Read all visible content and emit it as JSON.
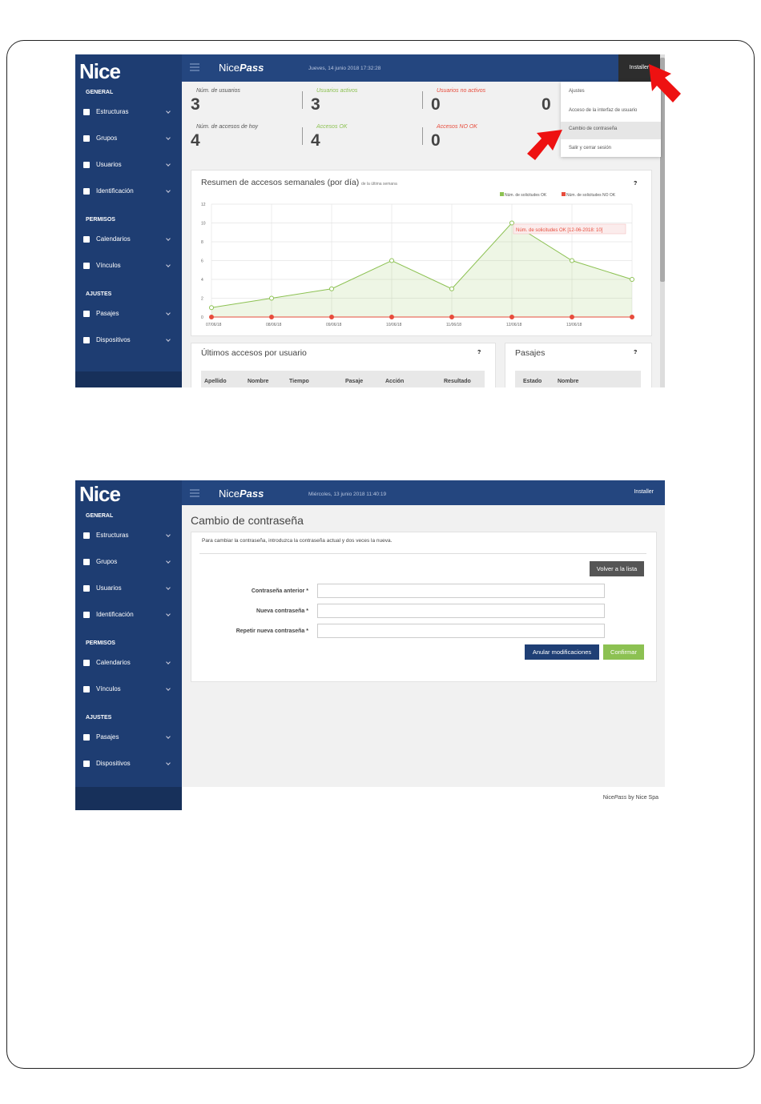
{
  "screen1": {
    "logo": "Nice",
    "app": "Nice",
    "app_em": "Pass",
    "datetime": "Jueves, 14 junio 2018   17:32:28",
    "user": "Installer",
    "sidebar": [
      {
        "title": "GENERAL",
        "items": [
          "Estructuras",
          "Grupos",
          "Usuarios",
          "Identificación"
        ]
      },
      {
        "title": "PERMISOS",
        "items": [
          "Calendarios",
          "Vínculos"
        ]
      },
      {
        "title": "AJUSTES",
        "items": [
          "Pasajes",
          "Dispositivos"
        ]
      }
    ],
    "stats": [
      [
        {
          "label": "Núm. de usuarios",
          "value": 3
        },
        {
          "label": "Usuarios activos",
          "value": 3
        },
        {
          "label": "Usuarios no activos",
          "value": 0
        },
        {
          "value": 0
        }
      ],
      [
        {
          "label": "Núm. de accesos de hoy",
          "value": 4
        },
        {
          "label": "Accesos OK",
          "value": 4
        },
        {
          "label": "Accesos NO OK",
          "value": 0
        }
      ]
    ],
    "menu": [
      "Ajustes",
      "Acceso de la interfaz de usuario",
      "Cambio de contraseña",
      "Salir y cerrar sesión"
    ],
    "chart": {
      "type": "line",
      "title": "Resumen de accesos semanales (por día)",
      "subtitle": "de la última semana",
      "help": "?",
      "categories": [
        "07/06/18",
        "08/06/18",
        "09/06/18",
        "10/06/18",
        "11/06/18",
        "12/06/18",
        "13/06/18",
        null
      ],
      "series": [
        {
          "name": "Núm. de solicitudes OK",
          "color": "#8cc152",
          "values": [
            1,
            2,
            3,
            6,
            3,
            10,
            6,
            4
          ]
        },
        {
          "name": "Núm. de solicitudes NO OK",
          "color": "#e74c3c",
          "values": [
            0,
            0,
            0,
            0,
            0,
            0,
            0,
            0
          ]
        }
      ],
      "ylim": [
        0,
        12
      ],
      "yticks": [
        0,
        2,
        4,
        6,
        8,
        10,
        12
      ],
      "grid": true,
      "annotation": "Núm. de solicitudes OK [12-06-2018: 10]"
    },
    "accesses": {
      "title": "Últimos accesos por usuario",
      "help": "?",
      "columns": [
        "Apellido",
        "Nombre",
        "Tiempo",
        "Pasaje",
        "Acción",
        "Resultado"
      ]
    },
    "passages": {
      "title": "Pasajes",
      "help": "?",
      "columns": [
        "Estado",
        "Nombre"
      ]
    }
  },
  "screen2": {
    "logo": "Nice",
    "app": "Nice",
    "app_em": "Pass",
    "datetime": "Miércoles, 13 junio 2018   11:40:19",
    "user": "Installer",
    "sidebar": [
      {
        "title": "GENERAL",
        "items": [
          "Estructuras",
          "Grupos",
          "Usuarios",
          "Identificación"
        ]
      },
      {
        "title": "PERMISOS",
        "items": [
          "Calendarios",
          "Vínculos"
        ]
      },
      {
        "title": "AJUSTES",
        "items": [
          "Pasajes",
          "Dispositivos"
        ]
      }
    ],
    "heading": "Cambio de contraseña",
    "intro": "Para cambiar la contraseña, introduzca la contraseña actual y dos veces la nueva.",
    "back": "Volver a la lista",
    "fields": [
      "Contraseña anterior *",
      "Nueva contraseña *",
      "Repetir nueva contraseña *"
    ],
    "cancel": "Anular modificaciones",
    "confirm": "Confirmar",
    "footer": {
      "brand": "Nice",
      "product": "Pass",
      "suffix": "by Nice Spa"
    }
  }
}
